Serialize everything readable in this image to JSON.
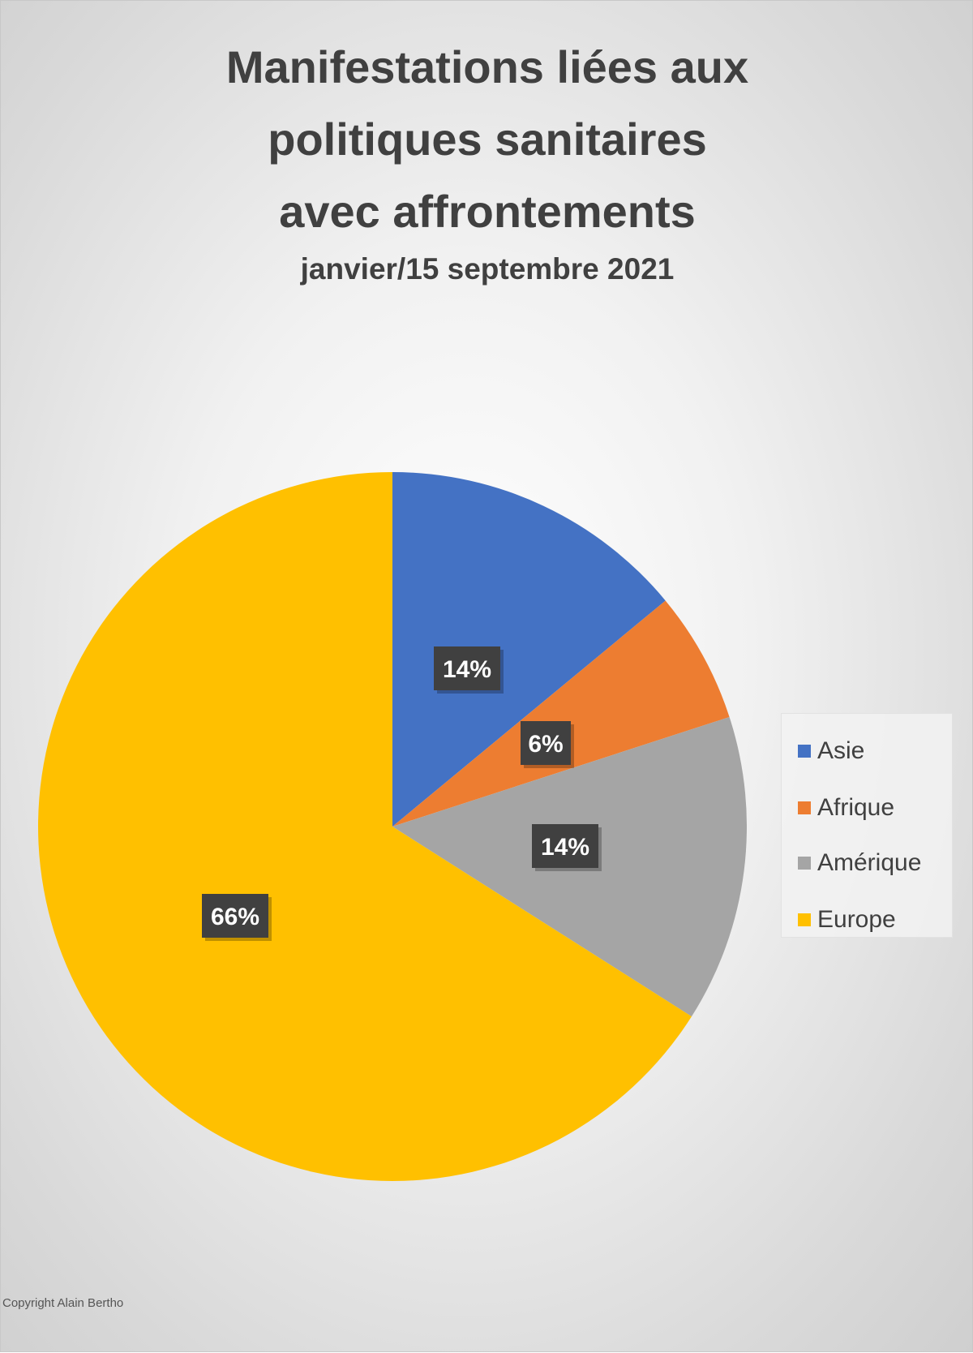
{
  "chart_data": {
    "type": "pie",
    "title": "Manifestations liées aux politiques sanitaires avec affrontements",
    "title_lines": [
      "Manifestations liées aux",
      "politiques sanitaires",
      "avec affrontements"
    ],
    "subtitle": "janvier/15 septembre 2021",
    "slices": [
      {
        "label": "Asie",
        "value": 14,
        "display": "14%",
        "color": "#4472C4"
      },
      {
        "label": "Afrique",
        "value": 6,
        "display": "6%",
        "color": "#ED7D31"
      },
      {
        "label": "Amérique",
        "value": 14,
        "display": "14%",
        "color": "#A5A5A5"
      },
      {
        "label": "Europe",
        "value": 66,
        "display": "66%",
        "color": "#FFC000"
      }
    ],
    "legend_position": "right"
  },
  "copyright": "Copyright Alain Bertho"
}
